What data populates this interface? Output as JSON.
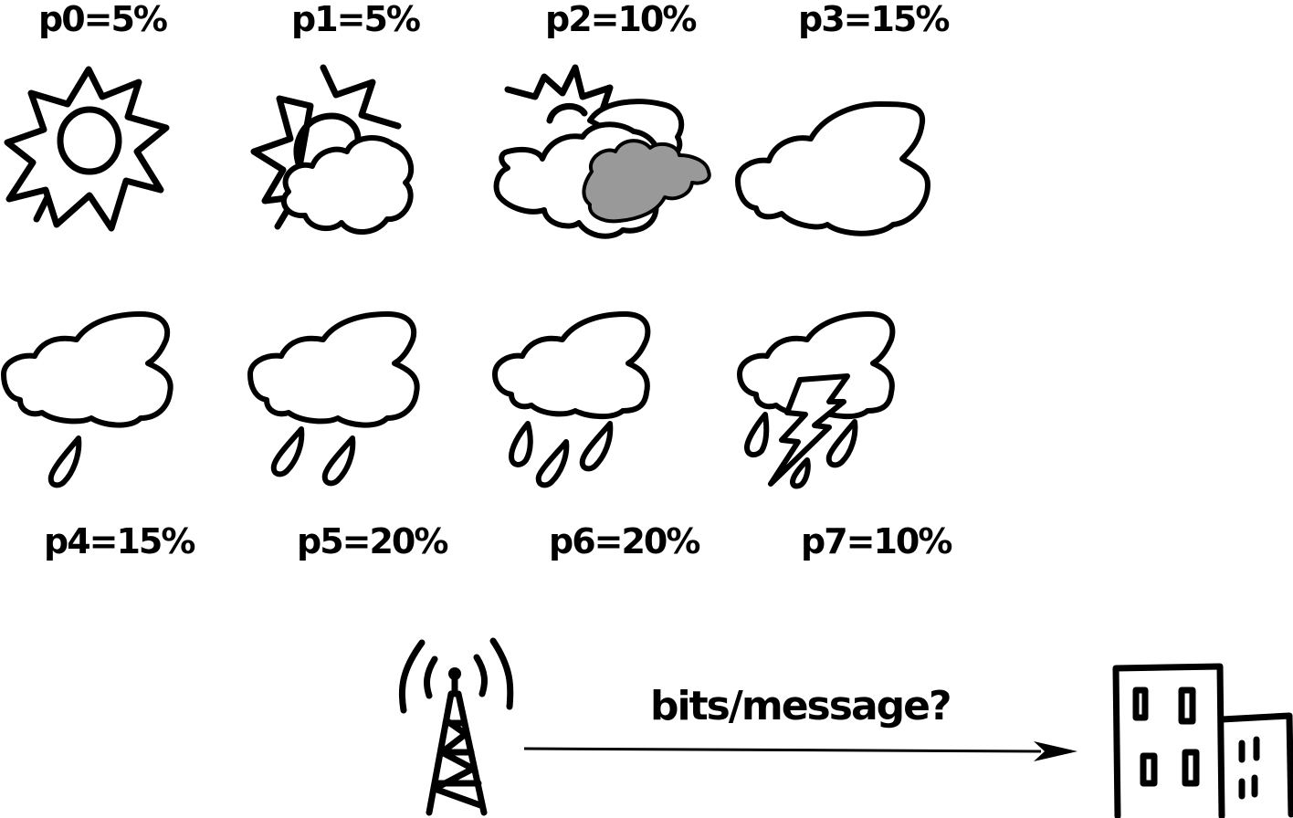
{
  "weather_states": [
    {
      "label": "p0=5%",
      "icon": "sun-icon"
    },
    {
      "label": "p1=5%",
      "icon": "sun-behind-cloud-icon"
    },
    {
      "label": "p2=10%",
      "icon": "sun-clouds-dark-cloud-icon"
    },
    {
      "label": "p3=15%",
      "icon": "cloud-icon"
    },
    {
      "label": "p4=15%",
      "icon": "cloud-one-drop-icon"
    },
    {
      "label": "p5=20%",
      "icon": "cloud-two-drops-icon"
    },
    {
      "label": "p6=20%",
      "icon": "cloud-three-drops-icon"
    },
    {
      "label": "p7=10%",
      "icon": "cloud-lightning-icon"
    }
  ],
  "transmission": {
    "question": "bits/message?",
    "sender_icon": "radio-tower-icon",
    "receiver_icon": "buildings-icon",
    "arrow_icon": "arrow-right-icon"
  }
}
